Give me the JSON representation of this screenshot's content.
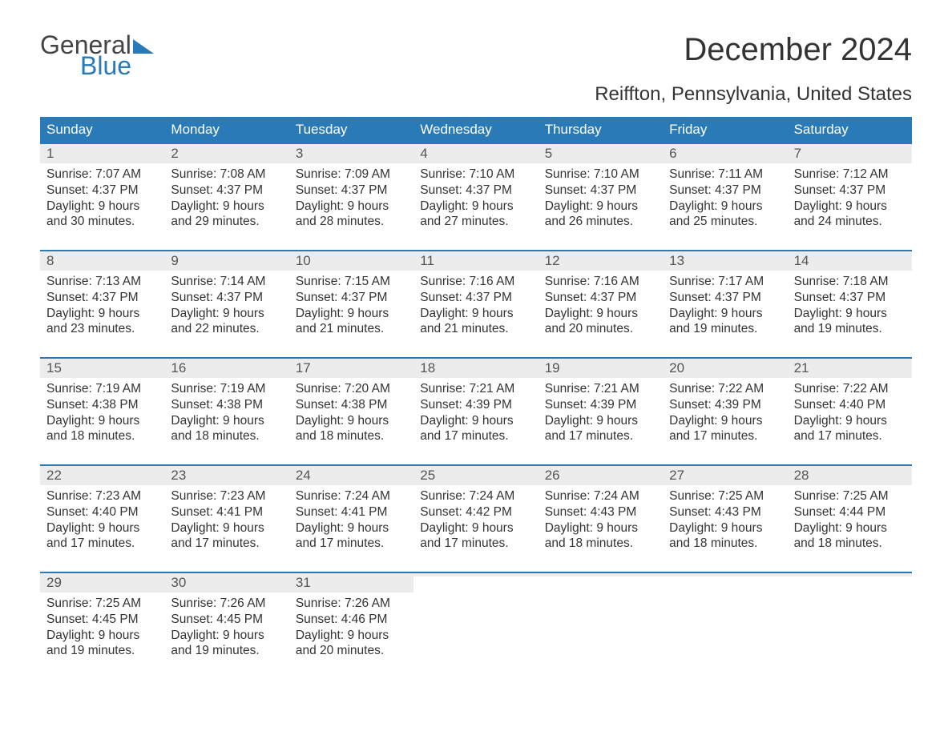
{
  "logo": {
    "text_general": "General",
    "text_blue": "Blue",
    "sail_color": "#2a7ab8"
  },
  "title": "December 2024",
  "location": "Reiffton, Pennsylvania, United States",
  "day_headers": [
    "Sunday",
    "Monday",
    "Tuesday",
    "Wednesday",
    "Thursday",
    "Friday",
    "Saturday"
  ],
  "colors": {
    "header_bg": "#2a7ab8",
    "header_text": "#ffffff",
    "daynum_bg": "#ececec",
    "week_border": "#2a7ab8",
    "body_text": "#333333"
  },
  "typography": {
    "title_fontsize": 40,
    "location_fontsize": 24,
    "header_fontsize": 17,
    "daynum_fontsize": 17,
    "content_fontsize": 15.5
  },
  "calendar": {
    "type": "table",
    "columns": 7,
    "weeks": [
      [
        {
          "n": "1",
          "sunrise": "Sunrise: 7:07 AM",
          "sunset": "Sunset: 4:37 PM",
          "day1": "Daylight: 9 hours",
          "day2": "and 30 minutes."
        },
        {
          "n": "2",
          "sunrise": "Sunrise: 7:08 AM",
          "sunset": "Sunset: 4:37 PM",
          "day1": "Daylight: 9 hours",
          "day2": "and 29 minutes."
        },
        {
          "n": "3",
          "sunrise": "Sunrise: 7:09 AM",
          "sunset": "Sunset: 4:37 PM",
          "day1": "Daylight: 9 hours",
          "day2": "and 28 minutes."
        },
        {
          "n": "4",
          "sunrise": "Sunrise: 7:10 AM",
          "sunset": "Sunset: 4:37 PM",
          "day1": "Daylight: 9 hours",
          "day2": "and 27 minutes."
        },
        {
          "n": "5",
          "sunrise": "Sunrise: 7:10 AM",
          "sunset": "Sunset: 4:37 PM",
          "day1": "Daylight: 9 hours",
          "day2": "and 26 minutes."
        },
        {
          "n": "6",
          "sunrise": "Sunrise: 7:11 AM",
          "sunset": "Sunset: 4:37 PM",
          "day1": "Daylight: 9 hours",
          "day2": "and 25 minutes."
        },
        {
          "n": "7",
          "sunrise": "Sunrise: 7:12 AM",
          "sunset": "Sunset: 4:37 PM",
          "day1": "Daylight: 9 hours",
          "day2": "and 24 minutes."
        }
      ],
      [
        {
          "n": "8",
          "sunrise": "Sunrise: 7:13 AM",
          "sunset": "Sunset: 4:37 PM",
          "day1": "Daylight: 9 hours",
          "day2": "and 23 minutes."
        },
        {
          "n": "9",
          "sunrise": "Sunrise: 7:14 AM",
          "sunset": "Sunset: 4:37 PM",
          "day1": "Daylight: 9 hours",
          "day2": "and 22 minutes."
        },
        {
          "n": "10",
          "sunrise": "Sunrise: 7:15 AM",
          "sunset": "Sunset: 4:37 PM",
          "day1": "Daylight: 9 hours",
          "day2": "and 21 minutes."
        },
        {
          "n": "11",
          "sunrise": "Sunrise: 7:16 AM",
          "sunset": "Sunset: 4:37 PM",
          "day1": "Daylight: 9 hours",
          "day2": "and 21 minutes."
        },
        {
          "n": "12",
          "sunrise": "Sunrise: 7:16 AM",
          "sunset": "Sunset: 4:37 PM",
          "day1": "Daylight: 9 hours",
          "day2": "and 20 minutes."
        },
        {
          "n": "13",
          "sunrise": "Sunrise: 7:17 AM",
          "sunset": "Sunset: 4:37 PM",
          "day1": "Daylight: 9 hours",
          "day2": "and 19 minutes."
        },
        {
          "n": "14",
          "sunrise": "Sunrise: 7:18 AM",
          "sunset": "Sunset: 4:37 PM",
          "day1": "Daylight: 9 hours",
          "day2": "and 19 minutes."
        }
      ],
      [
        {
          "n": "15",
          "sunrise": "Sunrise: 7:19 AM",
          "sunset": "Sunset: 4:38 PM",
          "day1": "Daylight: 9 hours",
          "day2": "and 18 minutes."
        },
        {
          "n": "16",
          "sunrise": "Sunrise: 7:19 AM",
          "sunset": "Sunset: 4:38 PM",
          "day1": "Daylight: 9 hours",
          "day2": "and 18 minutes."
        },
        {
          "n": "17",
          "sunrise": "Sunrise: 7:20 AM",
          "sunset": "Sunset: 4:38 PM",
          "day1": "Daylight: 9 hours",
          "day2": "and 18 minutes."
        },
        {
          "n": "18",
          "sunrise": "Sunrise: 7:21 AM",
          "sunset": "Sunset: 4:39 PM",
          "day1": "Daylight: 9 hours",
          "day2": "and 17 minutes."
        },
        {
          "n": "19",
          "sunrise": "Sunrise: 7:21 AM",
          "sunset": "Sunset: 4:39 PM",
          "day1": "Daylight: 9 hours",
          "day2": "and 17 minutes."
        },
        {
          "n": "20",
          "sunrise": "Sunrise: 7:22 AM",
          "sunset": "Sunset: 4:39 PM",
          "day1": "Daylight: 9 hours",
          "day2": "and 17 minutes."
        },
        {
          "n": "21",
          "sunrise": "Sunrise: 7:22 AM",
          "sunset": "Sunset: 4:40 PM",
          "day1": "Daylight: 9 hours",
          "day2": "and 17 minutes."
        }
      ],
      [
        {
          "n": "22",
          "sunrise": "Sunrise: 7:23 AM",
          "sunset": "Sunset: 4:40 PM",
          "day1": "Daylight: 9 hours",
          "day2": "and 17 minutes."
        },
        {
          "n": "23",
          "sunrise": "Sunrise: 7:23 AM",
          "sunset": "Sunset: 4:41 PM",
          "day1": "Daylight: 9 hours",
          "day2": "and 17 minutes."
        },
        {
          "n": "24",
          "sunrise": "Sunrise: 7:24 AM",
          "sunset": "Sunset: 4:41 PM",
          "day1": "Daylight: 9 hours",
          "day2": "and 17 minutes."
        },
        {
          "n": "25",
          "sunrise": "Sunrise: 7:24 AM",
          "sunset": "Sunset: 4:42 PM",
          "day1": "Daylight: 9 hours",
          "day2": "and 17 minutes."
        },
        {
          "n": "26",
          "sunrise": "Sunrise: 7:24 AM",
          "sunset": "Sunset: 4:43 PM",
          "day1": "Daylight: 9 hours",
          "day2": "and 18 minutes."
        },
        {
          "n": "27",
          "sunrise": "Sunrise: 7:25 AM",
          "sunset": "Sunset: 4:43 PM",
          "day1": "Daylight: 9 hours",
          "day2": "and 18 minutes."
        },
        {
          "n": "28",
          "sunrise": "Sunrise: 7:25 AM",
          "sunset": "Sunset: 4:44 PM",
          "day1": "Daylight: 9 hours",
          "day2": "and 18 minutes."
        }
      ],
      [
        {
          "n": "29",
          "sunrise": "Sunrise: 7:25 AM",
          "sunset": "Sunset: 4:45 PM",
          "day1": "Daylight: 9 hours",
          "day2": "and 19 minutes."
        },
        {
          "n": "30",
          "sunrise": "Sunrise: 7:26 AM",
          "sunset": "Sunset: 4:45 PM",
          "day1": "Daylight: 9 hours",
          "day2": "and 19 minutes."
        },
        {
          "n": "31",
          "sunrise": "Sunrise: 7:26 AM",
          "sunset": "Sunset: 4:46 PM",
          "day1": "Daylight: 9 hours",
          "day2": "and 20 minutes."
        },
        {
          "empty": true
        },
        {
          "empty": true
        },
        {
          "empty": true
        },
        {
          "empty": true
        }
      ]
    ]
  }
}
